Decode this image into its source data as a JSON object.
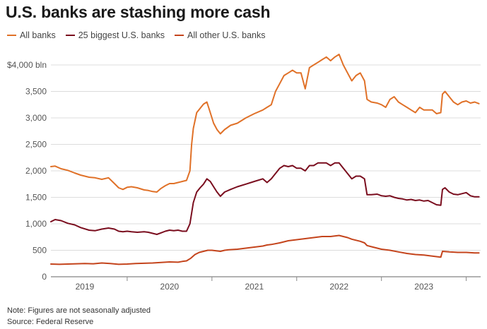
{
  "chart_data": {
    "type": "line",
    "title": "U.S. banks are stashing more cash",
    "xlabel": "",
    "ylabel": "",
    "x_range": [
      2018.6,
      2023.67
    ],
    "ylim": [
      0,
      4000
    ],
    "y_ticks": [
      0,
      500,
      1000,
      1500,
      2000,
      2500,
      3000,
      3500,
      4000
    ],
    "y_tick_labels": [
      "0",
      "500",
      "1,000",
      "1,500",
      "2,000",
      "2,500",
      "3,000",
      "3,500",
      "$4,000 bln"
    ],
    "x_ticks": [
      2019,
      2020,
      2021,
      2022,
      2023
    ],
    "x_tick_labels": [
      "2019",
      "2020",
      "2021",
      "2022",
      "2023"
    ],
    "grid": true,
    "legend_position": "top-left",
    "series": [
      {
        "name": "All banks",
        "color": "#e07128",
        "points": [
          [
            2018.6,
            2080
          ],
          [
            2018.65,
            2090
          ],
          [
            2018.72,
            2040
          ],
          [
            2018.8,
            2010
          ],
          [
            2018.88,
            1960
          ],
          [
            2018.95,
            1920
          ],
          [
            2019.05,
            1880
          ],
          [
            2019.12,
            1870
          ],
          [
            2019.2,
            1840
          ],
          [
            2019.28,
            1870
          ],
          [
            2019.35,
            1760
          ],
          [
            2019.4,
            1680
          ],
          [
            2019.45,
            1650
          ],
          [
            2019.5,
            1690
          ],
          [
            2019.55,
            1700
          ],
          [
            2019.62,
            1680
          ],
          [
            2019.7,
            1640
          ],
          [
            2019.75,
            1630
          ],
          [
            2019.8,
            1610
          ],
          [
            2019.85,
            1600
          ],
          [
            2019.9,
            1670
          ],
          [
            2019.95,
            1720
          ],
          [
            2020.0,
            1760
          ],
          [
            2020.05,
            1760
          ],
          [
            2020.1,
            1780
          ],
          [
            2020.15,
            1800
          ],
          [
            2020.2,
            1820
          ],
          [
            2020.24,
            2000
          ],
          [
            2020.26,
            2500
          ],
          [
            2020.28,
            2800
          ],
          [
            2020.32,
            3100
          ],
          [
            2020.36,
            3180
          ],
          [
            2020.4,
            3260
          ],
          [
            2020.44,
            3300
          ],
          [
            2020.48,
            3100
          ],
          [
            2020.52,
            2900
          ],
          [
            2020.56,
            2780
          ],
          [
            2020.6,
            2700
          ],
          [
            2020.65,
            2780
          ],
          [
            2020.72,
            2860
          ],
          [
            2020.8,
            2900
          ],
          [
            2020.9,
            3000
          ],
          [
            2021.0,
            3080
          ],
          [
            2021.1,
            3150
          ],
          [
            2021.15,
            3200
          ],
          [
            2021.2,
            3250
          ],
          [
            2021.25,
            3500
          ],
          [
            2021.3,
            3650
          ],
          [
            2021.35,
            3800
          ],
          [
            2021.4,
            3850
          ],
          [
            2021.45,
            3900
          ],
          [
            2021.5,
            3850
          ],
          [
            2021.55,
            3850
          ],
          [
            2021.6,
            3550
          ],
          [
            2021.65,
            3950
          ],
          [
            2021.7,
            4000
          ],
          [
            2021.75,
            4050
          ],
          [
            2021.8,
            4100
          ],
          [
            2021.85,
            4150
          ],
          [
            2021.9,
            4080
          ],
          [
            2021.95,
            4150
          ],
          [
            2022.0,
            4200
          ],
          [
            2022.05,
            4000
          ],
          [
            2022.1,
            3850
          ],
          [
            2022.15,
            3700
          ],
          [
            2022.2,
            3800
          ],
          [
            2022.25,
            3850
          ],
          [
            2022.3,
            3700
          ],
          [
            2022.33,
            3350
          ],
          [
            2022.38,
            3300
          ],
          [
            2022.45,
            3280
          ],
          [
            2022.5,
            3250
          ],
          [
            2022.55,
            3200
          ],
          [
            2022.6,
            3350
          ],
          [
            2022.65,
            3400
          ],
          [
            2022.7,
            3300
          ],
          [
            2022.75,
            3250
          ],
          [
            2022.8,
            3200
          ],
          [
            2022.85,
            3150
          ],
          [
            2022.9,
            3100
          ],
          [
            2022.95,
            3200
          ],
          [
            2023.0,
            3150
          ],
          [
            2023.05,
            3150
          ],
          [
            2023.1,
            3150
          ],
          [
            2023.15,
            3080
          ],
          [
            2023.2,
            3100
          ],
          [
            2023.22,
            3450
          ],
          [
            2023.25,
            3500
          ],
          [
            2023.3,
            3400
          ],
          [
            2023.35,
            3300
          ],
          [
            2023.4,
            3250
          ],
          [
            2023.45,
            3300
          ],
          [
            2023.5,
            3320
          ],
          [
            2023.55,
            3280
          ],
          [
            2023.6,
            3300
          ],
          [
            2023.65,
            3270
          ]
        ]
      },
      {
        "name": "25 biggest U.S. banks",
        "color": "#7a0d1e",
        "points": [
          [
            2018.6,
            1040
          ],
          [
            2018.65,
            1080
          ],
          [
            2018.72,
            1060
          ],
          [
            2018.8,
            1010
          ],
          [
            2018.88,
            980
          ],
          [
            2018.95,
            930
          ],
          [
            2019.05,
            880
          ],
          [
            2019.12,
            870
          ],
          [
            2019.2,
            900
          ],
          [
            2019.28,
            920
          ],
          [
            2019.35,
            900
          ],
          [
            2019.4,
            860
          ],
          [
            2019.45,
            850
          ],
          [
            2019.5,
            860
          ],
          [
            2019.55,
            850
          ],
          [
            2019.62,
            840
          ],
          [
            2019.7,
            850
          ],
          [
            2019.75,
            840
          ],
          [
            2019.8,
            820
          ],
          [
            2019.85,
            800
          ],
          [
            2019.9,
            830
          ],
          [
            2019.95,
            860
          ],
          [
            2020.0,
            880
          ],
          [
            2020.05,
            870
          ],
          [
            2020.1,
            880
          ],
          [
            2020.15,
            860
          ],
          [
            2020.2,
            860
          ],
          [
            2020.24,
            1000
          ],
          [
            2020.26,
            1200
          ],
          [
            2020.28,
            1400
          ],
          [
            2020.32,
            1600
          ],
          [
            2020.36,
            1680
          ],
          [
            2020.4,
            1750
          ],
          [
            2020.44,
            1850
          ],
          [
            2020.48,
            1800
          ],
          [
            2020.52,
            1700
          ],
          [
            2020.56,
            1600
          ],
          [
            2020.6,
            1520
          ],
          [
            2020.65,
            1600
          ],
          [
            2020.72,
            1650
          ],
          [
            2020.8,
            1700
          ],
          [
            2020.9,
            1750
          ],
          [
            2021.0,
            1800
          ],
          [
            2021.1,
            1850
          ],
          [
            2021.15,
            1780
          ],
          [
            2021.2,
            1850
          ],
          [
            2021.25,
            1950
          ],
          [
            2021.3,
            2050
          ],
          [
            2021.35,
            2100
          ],
          [
            2021.4,
            2080
          ],
          [
            2021.45,
            2100
          ],
          [
            2021.5,
            2050
          ],
          [
            2021.55,
            2050
          ],
          [
            2021.6,
            2000
          ],
          [
            2021.65,
            2100
          ],
          [
            2021.7,
            2100
          ],
          [
            2021.75,
            2150
          ],
          [
            2021.8,
            2150
          ],
          [
            2021.85,
            2150
          ],
          [
            2021.9,
            2100
          ],
          [
            2021.95,
            2150
          ],
          [
            2022.0,
            2150
          ],
          [
            2022.05,
            2050
          ],
          [
            2022.1,
            1950
          ],
          [
            2022.15,
            1850
          ],
          [
            2022.2,
            1900
          ],
          [
            2022.25,
            1900
          ],
          [
            2022.3,
            1850
          ],
          [
            2022.33,
            1550
          ],
          [
            2022.38,
            1550
          ],
          [
            2022.45,
            1560
          ],
          [
            2022.5,
            1530
          ],
          [
            2022.55,
            1520
          ],
          [
            2022.6,
            1530
          ],
          [
            2022.65,
            1500
          ],
          [
            2022.7,
            1480
          ],
          [
            2022.75,
            1470
          ],
          [
            2022.8,
            1450
          ],
          [
            2022.85,
            1460
          ],
          [
            2022.9,
            1440
          ],
          [
            2022.95,
            1450
          ],
          [
            2023.0,
            1430
          ],
          [
            2023.05,
            1440
          ],
          [
            2023.1,
            1400
          ],
          [
            2023.15,
            1360
          ],
          [
            2023.2,
            1350
          ],
          [
            2023.22,
            1650
          ],
          [
            2023.25,
            1680
          ],
          [
            2023.3,
            1600
          ],
          [
            2023.35,
            1560
          ],
          [
            2023.4,
            1550
          ],
          [
            2023.45,
            1570
          ],
          [
            2023.5,
            1590
          ],
          [
            2023.55,
            1530
          ],
          [
            2023.6,
            1510
          ],
          [
            2023.65,
            1510
          ]
        ]
      },
      {
        "name": "All other U.S. banks",
        "color": "#c4441c",
        "points": [
          [
            2018.6,
            240
          ],
          [
            2018.7,
            235
          ],
          [
            2018.8,
            240
          ],
          [
            2018.9,
            245
          ],
          [
            2019.0,
            250
          ],
          [
            2019.1,
            245
          ],
          [
            2019.2,
            260
          ],
          [
            2019.3,
            250
          ],
          [
            2019.4,
            235
          ],
          [
            2019.5,
            240
          ],
          [
            2019.6,
            250
          ],
          [
            2019.7,
            255
          ],
          [
            2019.8,
            260
          ],
          [
            2019.9,
            270
          ],
          [
            2020.0,
            280
          ],
          [
            2020.1,
            275
          ],
          [
            2020.15,
            290
          ],
          [
            2020.2,
            300
          ],
          [
            2020.25,
            350
          ],
          [
            2020.3,
            420
          ],
          [
            2020.35,
            460
          ],
          [
            2020.4,
            480
          ],
          [
            2020.45,
            500
          ],
          [
            2020.5,
            500
          ],
          [
            2020.55,
            490
          ],
          [
            2020.6,
            480
          ],
          [
            2020.65,
            500
          ],
          [
            2020.7,
            510
          ],
          [
            2020.8,
            520
          ],
          [
            2020.9,
            540
          ],
          [
            2021.0,
            560
          ],
          [
            2021.1,
            580
          ],
          [
            2021.15,
            600
          ],
          [
            2021.2,
            610
          ],
          [
            2021.3,
            640
          ],
          [
            2021.4,
            680
          ],
          [
            2021.5,
            700
          ],
          [
            2021.6,
            720
          ],
          [
            2021.7,
            740
          ],
          [
            2021.8,
            760
          ],
          [
            2021.9,
            760
          ],
          [
            2022.0,
            780
          ],
          [
            2022.05,
            760
          ],
          [
            2022.1,
            740
          ],
          [
            2022.15,
            710
          ],
          [
            2022.2,
            690
          ],
          [
            2022.25,
            670
          ],
          [
            2022.3,
            640
          ],
          [
            2022.33,
            590
          ],
          [
            2022.4,
            560
          ],
          [
            2022.5,
            520
          ],
          [
            2022.6,
            500
          ],
          [
            2022.7,
            470
          ],
          [
            2022.8,
            440
          ],
          [
            2022.9,
            420
          ],
          [
            2023.0,
            410
          ],
          [
            2023.1,
            390
          ],
          [
            2023.15,
            380
          ],
          [
            2023.2,
            370
          ],
          [
            2023.22,
            480
          ],
          [
            2023.3,
            470
          ],
          [
            2023.4,
            460
          ],
          [
            2023.5,
            460
          ],
          [
            2023.6,
            450
          ],
          [
            2023.65,
            450
          ]
        ]
      }
    ]
  },
  "texts": {
    "title": "U.S. banks are stashing more cash",
    "legend": [
      "All banks",
      "25 biggest U.S. banks",
      "All other U.S. banks"
    ],
    "note": "Note: Figures are not seasonally adjusted",
    "source": "Source: Federal Reserve"
  }
}
